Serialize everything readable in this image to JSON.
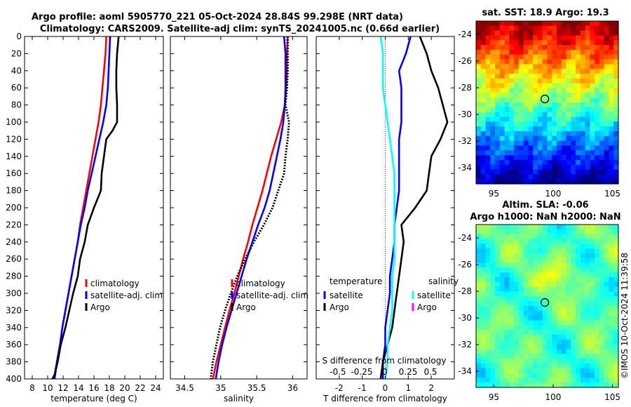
{
  "header": {
    "line1": "Argo profile: aoml 5905770_221 05-Oct-2024 28.84S 99.298E (NRT data)",
    "line2": "Climatology: CARS2009. Satellite-adj clim: synTS_20241005.nc (0.66d earlier)"
  },
  "colors": {
    "red": "#ff0000",
    "blue": "#0000ff",
    "black": "#000000",
    "cyan": "#00ffff",
    "magenta": "#ff00ff"
  },
  "chart_data": [
    {
      "type": "line",
      "name": "temperature-panel",
      "xlabel": "temperature (deg C)",
      "xlim": [
        7,
        25
      ],
      "xticks": [
        8,
        10,
        12,
        14,
        16,
        18,
        20,
        22,
        24
      ],
      "ylim": [
        400,
        0
      ],
      "yticks": [
        0,
        20,
        40,
        60,
        80,
        100,
        120,
        140,
        160,
        180,
        200,
        220,
        240,
        260,
        280,
        300,
        320,
        340,
        360,
        380,
        400
      ],
      "legend": [
        "climatology",
        "satellite-adj. clim",
        "Argo"
      ],
      "series": [
        {
          "name": "climatology",
          "color": "red",
          "x": [
            17.6,
            17.5,
            17.3,
            17.1,
            16.9,
            16.6,
            16.2,
            15.8,
            15.4,
            15.0,
            14.6,
            14.2,
            13.9,
            13.5,
            13.1,
            12.7,
            12.3,
            11.9,
            11.6,
            11.2,
            10.8
          ],
          "y": [
            0,
            20,
            40,
            60,
            80,
            100,
            120,
            140,
            160,
            180,
            200,
            220,
            240,
            260,
            280,
            300,
            320,
            340,
            360,
            380,
            400
          ]
        },
        {
          "name": "satellite-adj. clim",
          "color": "blue",
          "x": [
            18.1,
            18.0,
            17.9,
            17.8,
            17.6,
            17.2,
            16.7,
            16.2,
            15.7,
            15.2,
            14.8,
            14.3,
            13.9,
            13.5,
            13.1,
            12.7,
            12.3,
            11.9,
            11.6,
            11.2,
            10.9
          ],
          "y": [
            0,
            20,
            40,
            60,
            80,
            100,
            120,
            140,
            160,
            180,
            200,
            220,
            240,
            260,
            280,
            300,
            320,
            340,
            360,
            380,
            400
          ]
        },
        {
          "name": "Argo",
          "color": "black",
          "x": [
            19.2,
            19.0,
            18.9,
            18.9,
            19.0,
            19.0,
            18.4,
            17.6,
            17.3,
            17.0,
            16.9,
            16.0,
            15.2,
            14.8,
            14.2,
            13.9,
            13.3,
            12.8,
            12.3,
            11.7,
            11.3,
            10.9,
            10.6
          ],
          "y": [
            0,
            20,
            40,
            60,
            80,
            100,
            110,
            120,
            140,
            160,
            180,
            200,
            220,
            240,
            260,
            280,
            300,
            320,
            340,
            360,
            380,
            395,
            400
          ]
        }
      ]
    },
    {
      "type": "line",
      "name": "salinity-panel",
      "xlabel": "salinity",
      "xlim": [
        34.3,
        36.2
      ],
      "xticks": [
        34.5,
        35,
        35.5,
        36
      ],
      "ylim": [
        400,
        0
      ],
      "legend": [
        "climatology",
        "satellite-adj. clim",
        "Argo"
      ],
      "series": [
        {
          "name": "climatology",
          "color": "red",
          "x": [
            35.93,
            35.92,
            35.92,
            35.91,
            35.89,
            35.84,
            35.77,
            35.7,
            35.64,
            35.58,
            35.51,
            35.44,
            35.38,
            35.31,
            35.25,
            35.19,
            35.12,
            35.06,
            35.0,
            34.94,
            34.89
          ],
          "y": [
            0,
            20,
            40,
            60,
            80,
            100,
            120,
            140,
            160,
            180,
            200,
            220,
            240,
            260,
            280,
            300,
            320,
            340,
            360,
            380,
            400
          ]
        },
        {
          "name": "satellite-adj. clim",
          "color": "blue",
          "x": [
            35.88,
            35.9,
            35.9,
            35.9,
            35.89,
            35.87,
            35.83,
            35.78,
            35.73,
            35.68,
            35.61,
            35.52,
            35.44,
            35.36,
            35.29,
            35.22,
            35.15,
            35.08,
            35.02,
            34.97,
            34.93
          ],
          "y": [
            0,
            20,
            40,
            60,
            80,
            100,
            120,
            140,
            160,
            180,
            200,
            220,
            240,
            260,
            280,
            300,
            320,
            340,
            360,
            380,
            400
          ]
        },
        {
          "name": "Argo",
          "color": "black",
          "dashed": true,
          "x": [
            35.93,
            35.93,
            35.93,
            35.92,
            35.9,
            35.95,
            35.93,
            35.9,
            35.88,
            35.8,
            35.72,
            35.6,
            35.46,
            35.34,
            35.23,
            35.14,
            35.06,
            34.99,
            34.94,
            34.89,
            34.86
          ],
          "y": [
            0,
            20,
            40,
            60,
            80,
            100,
            120,
            140,
            160,
            180,
            200,
            220,
            240,
            260,
            280,
            300,
            320,
            340,
            360,
            380,
            400
          ]
        }
      ]
    },
    {
      "type": "line",
      "name": "difference-panel",
      "xlabel": "T difference from climatology",
      "xlabel2": "S difference from climatology",
      "xlim": [
        -3,
        3
      ],
      "xticks": [
        -2,
        -1,
        0,
        1,
        2
      ],
      "sxticklabels": [
        "-0.5",
        "-0.25",
        "0",
        "0.25",
        "0.5"
      ],
      "ylim": [
        400,
        0
      ],
      "legend_left_title": "temperature",
      "legend_right_title": "salinity",
      "legend_left": [
        "satellite",
        "Argo"
      ],
      "legend_right": [
        "satellite",
        "Argo"
      ],
      "series": [
        {
          "name": "T satellite",
          "color": "blue",
          "x": [
            1.1,
            0.9,
            0.6,
            0.7,
            0.7,
            0.7,
            0.6,
            0.6,
            0.6,
            0.6,
            0.5,
            0.4,
            0.4,
            0.3,
            0.2,
            0.2,
            0.1,
            0.0,
            0.0,
            -0.1,
            -0.1
          ],
          "y": [
            0,
            20,
            40,
            60,
            80,
            100,
            120,
            140,
            160,
            180,
            200,
            220,
            240,
            260,
            280,
            300,
            320,
            340,
            360,
            380,
            400
          ]
        },
        {
          "name": "T Argo",
          "color": "black",
          "x": [
            1.5,
            1.8,
            2.0,
            2.3,
            2.5,
            2.7,
            2.4,
            2.0,
            1.9,
            1.8,
            1.3,
            0.7,
            0.8,
            0.7,
            0.6,
            0.5,
            0.4,
            0.3,
            0.1,
            -0.1,
            -0.2
          ],
          "y": [
            0,
            20,
            40,
            60,
            80,
            100,
            120,
            140,
            160,
            180,
            200,
            220,
            240,
            260,
            280,
            300,
            320,
            340,
            360,
            380,
            400
          ]
        },
        {
          "name": "S satellite",
          "color": "cyan",
          "x": [
            -0.2,
            -0.1,
            -0.1,
            -0.1,
            0.0,
            0.1,
            0.2,
            0.3,
            0.4,
            0.4,
            0.4,
            0.4,
            0.4,
            0.4,
            0.3,
            0.3,
            0.3,
            0.2,
            0.1,
            0.1,
            0.0
          ],
          "y": [
            0,
            20,
            40,
            60,
            80,
            100,
            120,
            140,
            160,
            180,
            200,
            220,
            240,
            260,
            280,
            300,
            320,
            340,
            360,
            380,
            400
          ]
        }
      ]
    },
    {
      "type": "heatmap",
      "name": "sst-map",
      "title": "sat. SST: 18.9 Argo: 19.3",
      "xlim": [
        93.5,
        105.5
      ],
      "ylim": [
        -35.2,
        -23.0
      ],
      "xticks": [
        95,
        100,
        105
      ],
      "yticks": [
        -24,
        -26,
        -28,
        -30,
        -32,
        -34
      ],
      "marker": {
        "lon": 99.3,
        "lat": -28.84
      }
    },
    {
      "type": "heatmap",
      "name": "sla-map",
      "title": "Altim. SLA: -0.06",
      "subtitle": "Argo h1000: NaN h2000: NaN",
      "xlim": [
        93.5,
        105.5
      ],
      "ylim": [
        -35.2,
        -23.0
      ],
      "xticks": [
        95,
        100,
        105
      ],
      "yticks": [
        -24,
        -26,
        -28,
        -30,
        -32,
        -34
      ],
      "marker": {
        "lon": 99.3,
        "lat": -28.84
      }
    }
  ],
  "watermark": "©IMOS 10-Oct-2024 11:39:58"
}
